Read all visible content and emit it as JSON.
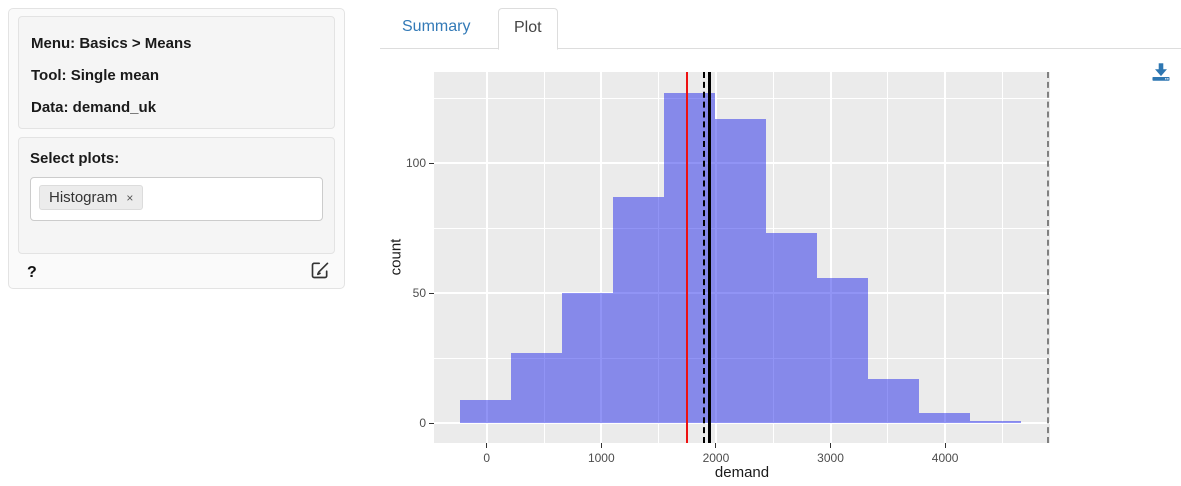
{
  "sidebar": {
    "summary": {
      "menu": "Menu: Basics > Means",
      "tool": "Tool: Single mean",
      "data": "Data: demand_uk"
    },
    "select_plots_label": "Select plots:",
    "selected_plots": [
      {
        "label": "Histogram",
        "remove": "×"
      }
    ],
    "help_label": "?"
  },
  "tabs": {
    "summary": "Summary",
    "plot": "Plot",
    "active_tab": "Plot"
  },
  "icons": {
    "download": "download-icon",
    "edit": "edit-icon",
    "remove": "remove-icon",
    "help": "help-icon"
  },
  "colors": {
    "accent_blue": "#337ab7",
    "panel_bg": "#ebebeb",
    "grid": "#ffffff",
    "bar_fill_effective": "#8589ee",
    "bar_fill_rgba": "rgba(0,8,232,0.43)",
    "tick_text": "#4d4d4d",
    "red_line": "#ee1111",
    "black_line": "#000000",
    "gray_line": "#808080"
  },
  "chart_data": {
    "type": "bar",
    "subtype": "histogram",
    "title": "",
    "xlabel": "demand",
    "ylabel": "count",
    "bin_edges": [
      -230,
      215,
      660,
      1105,
      1550,
      1995,
      2440,
      2885,
      3330,
      3775,
      4220,
      4665
    ],
    "counts": [
      9,
      27,
      50,
      87,
      127,
      117,
      73,
      56,
      17,
      4,
      1
    ],
    "x_ticks": [
      0,
      1000,
      2000,
      3000,
      4000
    ],
    "y_ticks": [
      0,
      50,
      100
    ],
    "x_minor": [
      500,
      1500,
      2500,
      3500,
      4500
    ],
    "y_minor": [
      25,
      75,
      125
    ],
    "xlim": [
      -460,
      4915
    ],
    "ylim": [
      -7.5,
      135
    ],
    "grid": true,
    "legend": "none",
    "vlines": [
      {
        "name": "comparison-value-line",
        "x": 1750,
        "color": "#ee1111",
        "style": "solid",
        "width": 2
      },
      {
        "name": "ci-dashed-line",
        "x": 1900,
        "color": "#000000",
        "style": "dashed",
        "width": 2
      },
      {
        "name": "mean-line",
        "x": 1945,
        "color": "#000000",
        "style": "solid",
        "width": 3
      },
      {
        "name": "upper-range-dashed-line",
        "x": 4900,
        "color": "#808080",
        "style": "dashed",
        "width": 2
      }
    ]
  }
}
